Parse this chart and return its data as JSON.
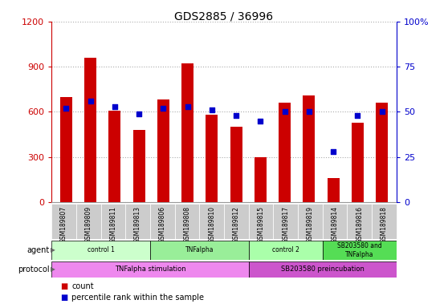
{
  "title": "GDS2885 / 36996",
  "samples": [
    "GSM189807",
    "GSM189809",
    "GSM189811",
    "GSM189813",
    "GSM189806",
    "GSM189808",
    "GSM189810",
    "GSM189812",
    "GSM189815",
    "GSM189817",
    "GSM189819",
    "GSM189814",
    "GSM189816",
    "GSM189818"
  ],
  "counts": [
    700,
    960,
    610,
    480,
    680,
    920,
    580,
    500,
    300,
    660,
    710,
    160,
    530,
    660
  ],
  "percentiles": [
    52,
    56,
    53,
    49,
    52,
    53,
    51,
    48,
    45,
    50,
    50,
    28,
    48,
    50
  ],
  "ylim_left": [
    0,
    1200
  ],
  "ylim_right": [
    0,
    100
  ],
  "yticks_left": [
    0,
    300,
    600,
    900,
    1200
  ],
  "yticks_right": [
    0,
    25,
    50,
    75,
    100
  ],
  "bar_color": "#cc0000",
  "dot_color": "#0000cc",
  "agent_groups": [
    {
      "label": "control 1",
      "start": 0,
      "end": 3,
      "color": "#ccffcc"
    },
    {
      "label": "TNFalpha",
      "start": 4,
      "end": 7,
      "color": "#99ee99"
    },
    {
      "label": "control 2",
      "start": 8,
      "end": 10,
      "color": "#aaffaa"
    },
    {
      "label": "SB203580 and\nTNFalpha",
      "start": 11,
      "end": 13,
      "color": "#55dd55"
    }
  ],
  "protocol_groups": [
    {
      "label": "TNFalpha stimulation",
      "start": 0,
      "end": 7,
      "color": "#ee88ee"
    },
    {
      "label": "SB203580 preincubation",
      "start": 8,
      "end": 13,
      "color": "#cc55cc"
    }
  ],
  "legend_count_color": "#cc0000",
  "legend_dot_color": "#0000cc",
  "ticklabel_bg": "#cccccc",
  "left_ylabel_color": "#cc0000",
  "right_ylabel_color": "#0000cc",
  "grid_color": "#aaaaaa",
  "bar_width": 0.5
}
